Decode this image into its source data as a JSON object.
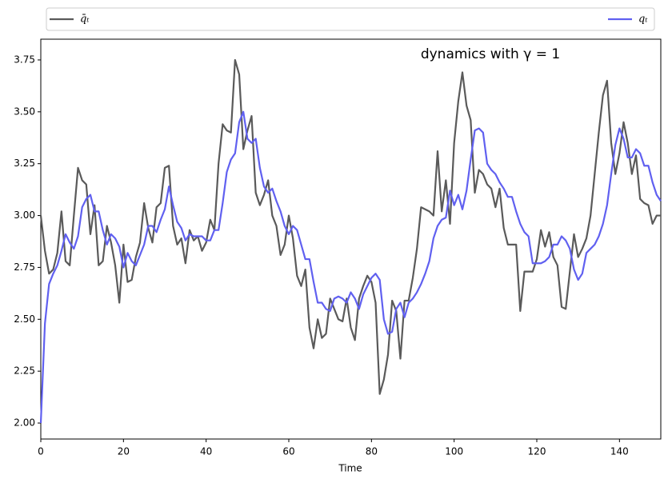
{
  "chart_data": {
    "type": "line",
    "annotation": "dynamics with γ = 1",
    "xlabel": "Time",
    "legend": "top",
    "xlim": [
      0,
      150
    ],
    "xticks": [
      0,
      20,
      40,
      60,
      80,
      100,
      120,
      140
    ],
    "ylim": [
      1.923,
      3.85
    ],
    "yticks": [
      {
        "value": 2.0,
        "label": "2.00"
      },
      {
        "value": 2.25,
        "label": "2.25"
      },
      {
        "value": 2.5,
        "label": "2.50"
      },
      {
        "value": 2.75,
        "label": "2.75"
      },
      {
        "value": 3.0,
        "label": "3.00"
      },
      {
        "value": 3.25,
        "label": "3.25"
      },
      {
        "value": 3.5,
        "label": "3.50"
      },
      {
        "value": 3.75,
        "label": "3.75"
      }
    ],
    "x": [
      0,
      1,
      2,
      3,
      4,
      5,
      6,
      7,
      8,
      9,
      10,
      11,
      12,
      13,
      14,
      15,
      16,
      17,
      18,
      19,
      20,
      21,
      22,
      23,
      24,
      25,
      26,
      27,
      28,
      29,
      30,
      31,
      32,
      33,
      34,
      35,
      36,
      37,
      38,
      39,
      40,
      41,
      42,
      43,
      44,
      45,
      46,
      47,
      48,
      49,
      50,
      51,
      52,
      53,
      54,
      55,
      56,
      57,
      58,
      59,
      60,
      61,
      62,
      63,
      64,
      65,
      66,
      67,
      68,
      69,
      70,
      71,
      72,
      73,
      74,
      75,
      76,
      77,
      78,
      79,
      80,
      81,
      82,
      83,
      84,
      85,
      86,
      87,
      88,
      89,
      90,
      91,
      92,
      93,
      94,
      95,
      96,
      97,
      98,
      99,
      100,
      101,
      102,
      103,
      104,
      105,
      106,
      107,
      108,
      109,
      110,
      111,
      112,
      113,
      114,
      115,
      116,
      117,
      118,
      119,
      120,
      121,
      122,
      123,
      124,
      125,
      126,
      127,
      128,
      129,
      130,
      131,
      132,
      133,
      134,
      135,
      136,
      137,
      138,
      139,
      140,
      141,
      142,
      143,
      144,
      145,
      146,
      147,
      148,
      149,
      150
    ],
    "series": [
      {
        "name": "q̄ₜ",
        "color": "#5a5a5a",
        "values": [
          3.0,
          2.83,
          2.72,
          2.74,
          2.82,
          3.02,
          2.78,
          2.76,
          3.0,
          3.23,
          3.17,
          3.15,
          2.91,
          3.05,
          2.76,
          2.78,
          2.95,
          2.87,
          2.76,
          2.58,
          2.86,
          2.68,
          2.69,
          2.8,
          2.87,
          3.06,
          2.94,
          2.87,
          3.04,
          3.06,
          3.23,
          3.24,
          2.95,
          2.86,
          2.89,
          2.77,
          2.93,
          2.88,
          2.9,
          2.83,
          2.87,
          2.98,
          2.93,
          3.25,
          3.44,
          3.41,
          3.4,
          3.75,
          3.68,
          3.32,
          3.41,
          3.48,
          3.11,
          3.05,
          3.1,
          3.17,
          3.0,
          2.95,
          2.81,
          2.86,
          3.0,
          2.89,
          2.71,
          2.66,
          2.74,
          2.46,
          2.36,
          2.5,
          2.41,
          2.43,
          2.6,
          2.55,
          2.5,
          2.49,
          2.6,
          2.46,
          2.4,
          2.6,
          2.66,
          2.71,
          2.68,
          2.58,
          2.14,
          2.21,
          2.33,
          2.59,
          2.54,
          2.31,
          2.59,
          2.59,
          2.7,
          2.84,
          3.04,
          3.03,
          3.02,
          3.0,
          3.31,
          3.02,
          3.17,
          2.96,
          3.35,
          3.55,
          3.69,
          3.53,
          3.46,
          3.11,
          3.22,
          3.2,
          3.15,
          3.13,
          3.04,
          3.13,
          2.94,
          2.86,
          2.86,
          2.86,
          2.54,
          2.73,
          2.73,
          2.73,
          2.79,
          2.93,
          2.85,
          2.92,
          2.8,
          2.76,
          2.56,
          2.55,
          2.73,
          2.91,
          2.8,
          2.84,
          2.89,
          3.0,
          3.2,
          3.4,
          3.58,
          3.65,
          3.35,
          3.2,
          3.3,
          3.45,
          3.35,
          3.2,
          3.29,
          3.08,
          3.06,
          3.05,
          2.96,
          3.0,
          3.0
        ]
      },
      {
        "name": "qₜ",
        "color": "#6060f0",
        "values": [
          2.0,
          2.48,
          2.67,
          2.72,
          2.76,
          2.83,
          2.91,
          2.87,
          2.84,
          2.9,
          3.04,
          3.08,
          3.1,
          3.02,
          3.02,
          2.93,
          2.86,
          2.91,
          2.89,
          2.85,
          2.75,
          2.82,
          2.78,
          2.76,
          2.81,
          2.86,
          2.95,
          2.95,
          2.92,
          2.98,
          3.03,
          3.14,
          3.05,
          2.97,
          2.94,
          2.88,
          2.91,
          2.9,
          2.9,
          2.9,
          2.88,
          2.88,
          2.93,
          2.93,
          3.06,
          3.21,
          3.27,
          3.3,
          3.45,
          3.5,
          3.37,
          3.35,
          3.37,
          3.23,
          3.14,
          3.11,
          3.13,
          3.07,
          3.02,
          2.95,
          2.91,
          2.95,
          2.93,
          2.86,
          2.79,
          2.79,
          2.68,
          2.58,
          2.58,
          2.55,
          2.54,
          2.6,
          2.61,
          2.6,
          2.58,
          2.63,
          2.6,
          2.55,
          2.62,
          2.66,
          2.7,
          2.72,
          2.69,
          2.5,
          2.43,
          2.44,
          2.55,
          2.58,
          2.51,
          2.58,
          2.6,
          2.63,
          2.67,
          2.72,
          2.78,
          2.89,
          2.95,
          2.98,
          2.99,
          3.12,
          3.05,
          3.1,
          3.03,
          3.12,
          3.27,
          3.41,
          3.42,
          3.4,
          3.25,
          3.22,
          3.2,
          3.16,
          3.13,
          3.09,
          3.09,
          3.02,
          2.96,
          2.92,
          2.9,
          2.77,
          2.77,
          2.77,
          2.78,
          2.8,
          2.86,
          2.86,
          2.9,
          2.88,
          2.84,
          2.74,
          2.69,
          2.72,
          2.82,
          2.84,
          2.86,
          2.9,
          2.96,
          3.05,
          3.2,
          3.34,
          3.42,
          3.37,
          3.28,
          3.28,
          3.32,
          3.3,
          3.24,
          3.24,
          3.16,
          3.1,
          3.07
        ]
      }
    ]
  }
}
